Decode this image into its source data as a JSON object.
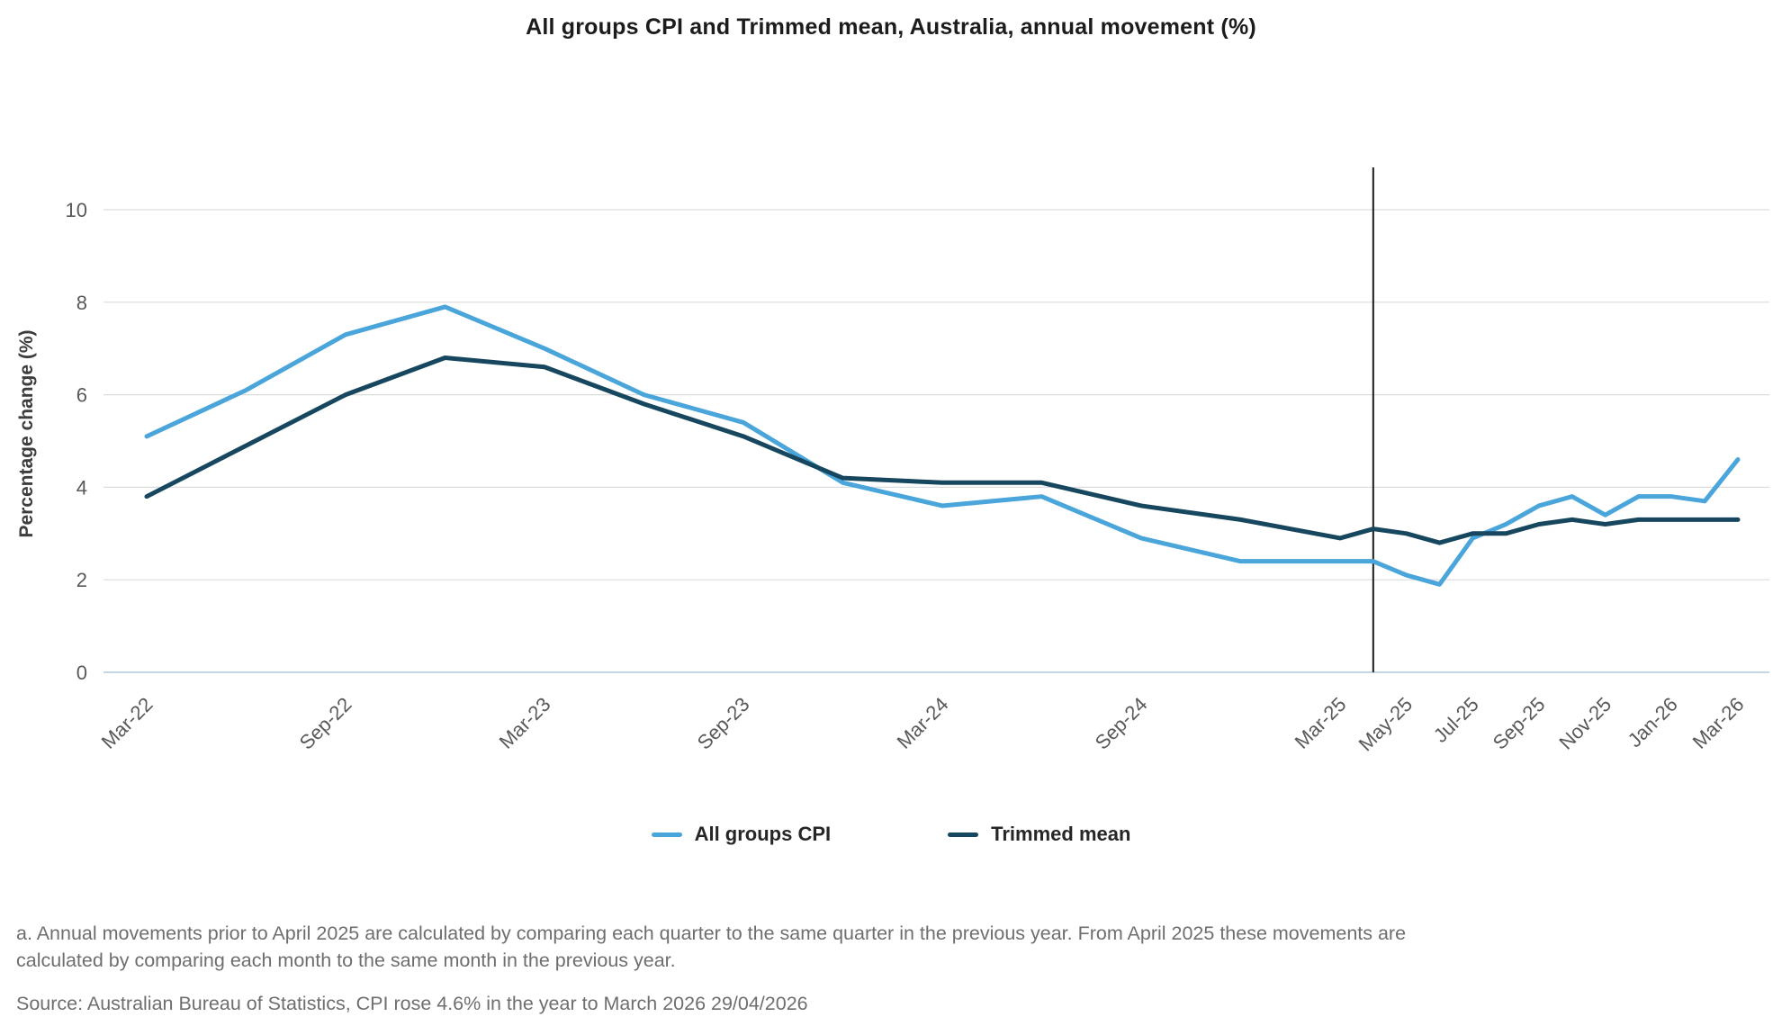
{
  "title": "All groups CPI and Trimmed mean, Australia, annual movement (%)",
  "chart_data": {
    "type": "line",
    "title": "All groups CPI and Trimmed mean, Australia, annual movement (%)",
    "xlabel": "",
    "ylabel": "Percentage change (%)",
    "ylim": [
      0,
      10
    ],
    "yticks": [
      0,
      2,
      4,
      6,
      8,
      10
    ],
    "grid": "horizontal",
    "legend_position": "bottom-center",
    "x_unit": "months since Mar-22",
    "x_range_months": [
      0,
      48
    ],
    "point_labels": [
      "Mar-22",
      "Jun-22",
      "Sep-22",
      "Dec-22",
      "Mar-23",
      "Jun-23",
      "Sep-23",
      "Dec-23",
      "Mar-24",
      "Jun-24",
      "Sep-24",
      "Dec-24",
      "Mar-25",
      "Apr-25",
      "May-25",
      "Jun-25",
      "Jul-25",
      "Aug-25",
      "Sep-25",
      "Oct-25",
      "Nov-25",
      "Dec-25",
      "Jan-26",
      "Feb-26",
      "Mar-26"
    ],
    "point_month_offsets": [
      0,
      3,
      6,
      9,
      12,
      15,
      18,
      21,
      24,
      27,
      30,
      33,
      36,
      37,
      38,
      39,
      40,
      41,
      42,
      43,
      44,
      45,
      46,
      47,
      48
    ],
    "series": [
      {
        "name": "All groups CPI",
        "color": "#49A5DA",
        "values": [
          5.1,
          6.1,
          7.3,
          7.9,
          7.0,
          6.0,
          5.4,
          4.1,
          3.6,
          3.8,
          2.9,
          2.4,
          2.4,
          2.4,
          2.1,
          1.9,
          2.9,
          3.2,
          3.6,
          3.8,
          3.4,
          3.8,
          3.8,
          3.7,
          4.6
        ]
      },
      {
        "name": "Trimmed mean",
        "color": "#17475F",
        "values": [
          3.8,
          4.9,
          6.0,
          6.8,
          6.6,
          5.8,
          5.1,
          4.2,
          4.1,
          4.1,
          3.6,
          3.3,
          2.9,
          3.1,
          3.0,
          2.8,
          3.0,
          3.0,
          3.2,
          3.3,
          3.2,
          3.3,
          3.3,
          3.3,
          3.3
        ]
      }
    ],
    "x_axis_ticks": [
      {
        "label": "Mar-22",
        "month": 0
      },
      {
        "label": "Sep-22",
        "month": 6
      },
      {
        "label": "Mar-23",
        "month": 12
      },
      {
        "label": "Sep-23",
        "month": 18
      },
      {
        "label": "Mar-24",
        "month": 24
      },
      {
        "label": "Sep-24",
        "month": 30
      },
      {
        "label": "Mar-25",
        "month": 36
      },
      {
        "label": "May-25",
        "month": 38
      },
      {
        "label": "Jul-25",
        "month": 40
      },
      {
        "label": "Sep-25",
        "month": 42
      },
      {
        "label": "Nov-25",
        "month": 44
      },
      {
        "label": "Jan-26",
        "month": 46
      },
      {
        "label": "Mar-26",
        "month": 48
      }
    ],
    "annotation_line": {
      "month": 37,
      "marks": "April 2025 switch from quarterly to monthly comparison",
      "color": "#1a1a1a"
    },
    "colors": {
      "gridline": "#dcdcdc",
      "baseline": "#c4d6e3",
      "tick_text": "#595959"
    }
  },
  "legend": {
    "items": [
      {
        "label": "All groups CPI"
      },
      {
        "label": "Trimmed mean"
      }
    ]
  },
  "footnotes": {
    "note_a_line1": "a. Annual movements prior to April 2025 are calculated by comparing each quarter to the same quarter in the previous year.  From April 2025 these movements are",
    "note_a_line2": "calculated by comparing each month to the same month in the previous year.",
    "source": "Source: Australian Bureau of Statistics, CPI rose 4.6% in the year to March 2026 29/04/2026"
  }
}
